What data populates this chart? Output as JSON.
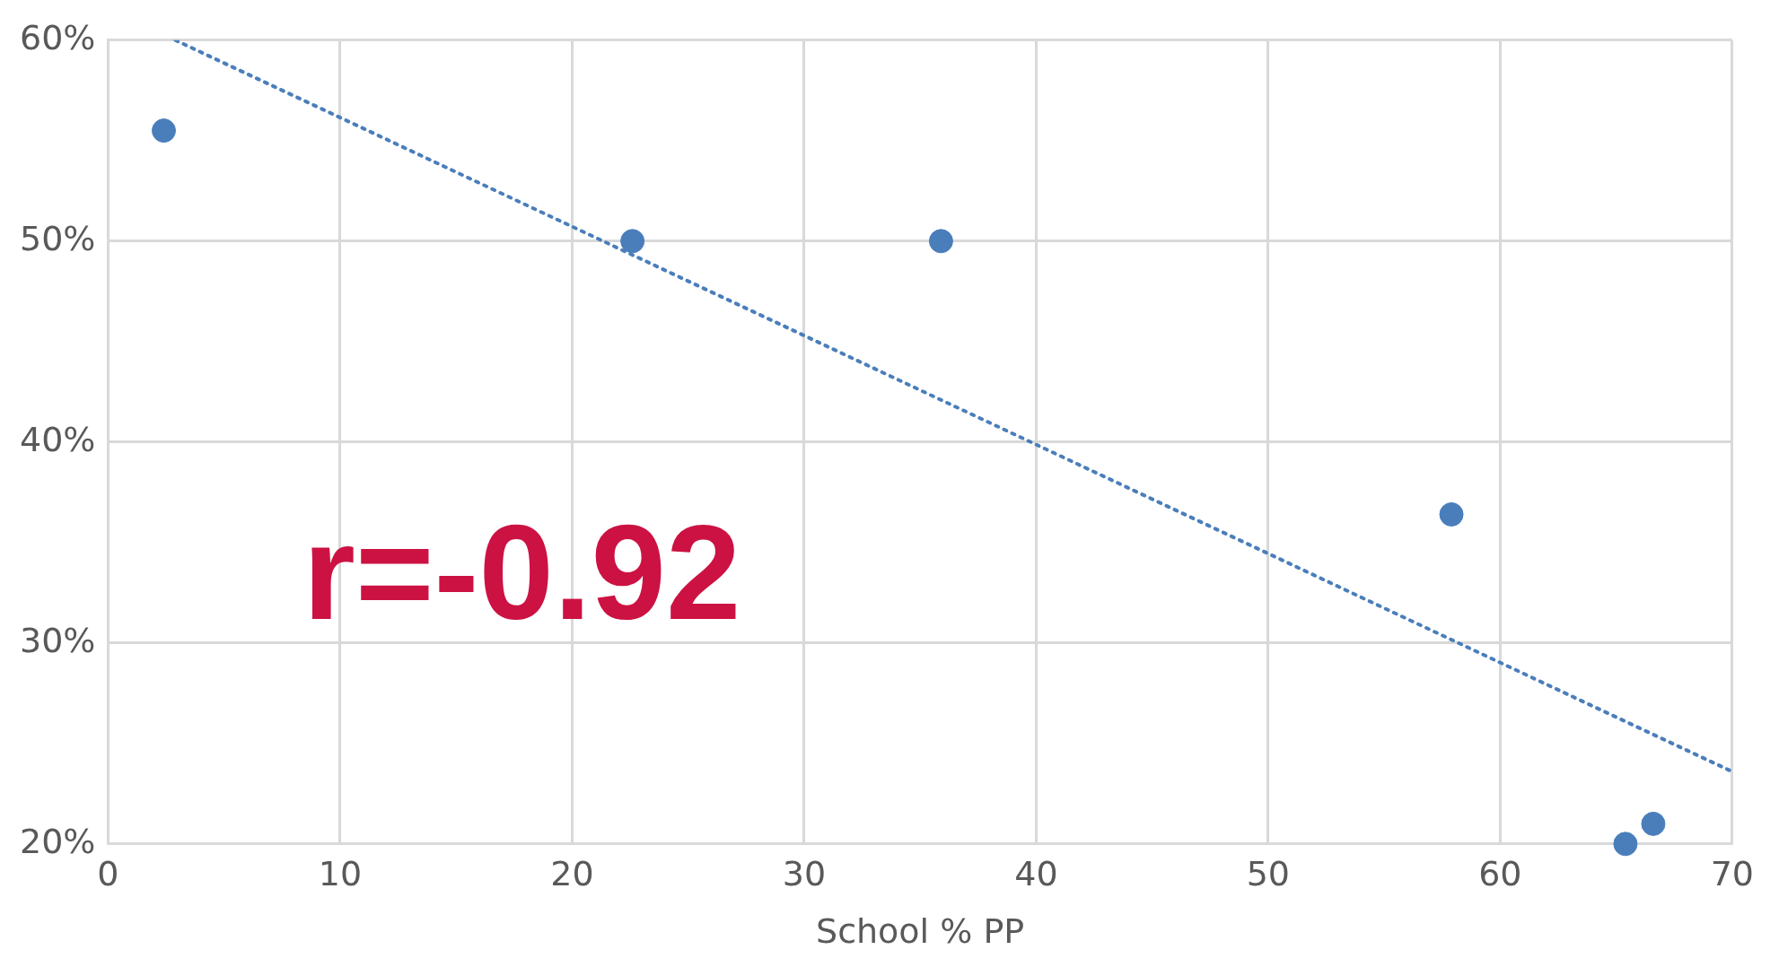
{
  "chart_data": {
    "type": "scatter",
    "xlabel": "School % PP",
    "xlim": [
      0,
      70
    ],
    "xticks": [
      0,
      10,
      20,
      30,
      40,
      50,
      60,
      70
    ],
    "ylim": [
      20,
      60
    ],
    "yticks": [
      {
        "value": 20,
        "label": "20%"
      },
      {
        "value": 30,
        "label": "30%"
      },
      {
        "value": 40,
        "label": "40%"
      },
      {
        "value": 50,
        "label": "50%"
      },
      {
        "value": 60,
        "label": "60%"
      }
    ],
    "grid": true,
    "legend": false,
    "series": [
      {
        "color": "#4a7ebb",
        "marker": "circle",
        "x": [
          2.4,
          22.6,
          35.9,
          57.9,
          65.4,
          66.6
        ],
        "values": [
          55.5,
          50,
          50,
          36.4,
          20,
          21
        ]
      },
      {
        "type": "line",
        "color": "#4a7ebb",
        "marker": "none",
        "line_style": "dotted",
        "x": [
          2.9,
          70
        ],
        "values": [
          60,
          23.6
        ]
      }
    ],
    "annotations": [
      "r=-0.92"
    ]
  }
}
